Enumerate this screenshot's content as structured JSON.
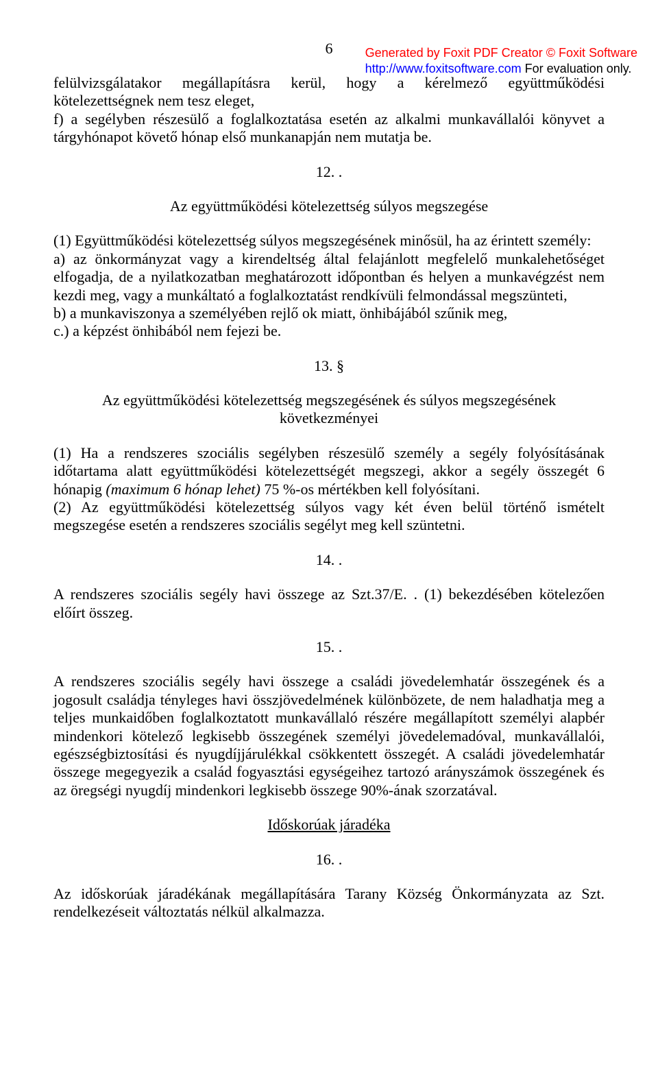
{
  "watermark": {
    "line1": "Generated by Foxit PDF Creator © Foxit Software",
    "line2_link": "http://www.foxitsoftware.com",
    "line2_suffix": "   For evaluation only."
  },
  "page_number": "6",
  "p1": "felülvizsgálatakor megállapításra kerül, hogy a kérelmező együttműködési kötelezettségnek nem tesz eleget,",
  "p2": "f) a segélyben részesülő a foglalkoztatása esetén az alkalmi munkavállalói könyvet a tárgyhónapot követő hónap első munkanapján nem mutatja be.",
  "s12_num": "12. .",
  "s12_title": "Az együttműködési kötelezettség súlyos megszegése",
  "s12_p1": "(1) Együttműködési kötelezettség súlyos megszegésének minősül, ha az érintett személy:",
  "s12_a": "a) az önkormányzat vagy a kirendeltség által felajánlott megfelelő munkalehetőséget elfogadja, de a nyilatkozatban meghatározott időpontban és helyen a munkavégzést nem kezdi meg, vagy a munkáltató a foglalkoztatást rendkívüli felmondással megszünteti,",
  "s12_b": "b) a munkaviszonya a személyében rejlő ok miatt, önhibájából szűnik meg,",
  "s12_c": "c.) a képzést önhibából nem fejezi be.",
  "s13_num": "13. §",
  "s13_title_l1": "Az együttműködési kötelezettség megszegésének és súlyos megszegésének",
  "s13_title_l2": "következményei",
  "s13_p1_a": "(1) Ha a rendszeres szociális segélyben részesülő személy a segély folyósításának időtartama alatt együttműködési kötelezettségét megszegi, akkor a segély összegét 6 hónapig ",
  "s13_p1_b_italic": "(maximum 6 hónap lehet) ",
  "s13_p1_c": "75 %-os mértékben kell folyósítani.",
  "s13_p2": "(2) Az együttműködési kötelezettség súlyos vagy két éven belül történő ismételt megszegése esetén a rendszeres szociális segélyt meg kell szüntetni.",
  "s14_num": "14. .",
  "s14_p": "A rendszeres szociális segély havi összege az Szt.37/E. . (1) bekezdésében kötelezően előírt összeg.",
  "s15_num": "15. .",
  "s15_p": "A rendszeres szociális segély havi összege a családi jövedelemhatár összegének és a jogosult családja tényleges havi összjövedelmének különbözete, de nem haladhatja meg a teljes munkaidőben foglalkoztatott munkavállaló részére megállapított személyi alapbér mindenkori kötelező legkisebb összegének személyi jövedelemadóval, munkavállalói, egészségbiztosítási és nyugdíjjárulékkal csökkentett összegét. A családi jövedelemhatár összege megegyezik a család fogyasztási egységeihez tartozó arányszámok összegének és az öregségi nyugdíj mindenkori legkisebb összege 90%-ának szorzatával.",
  "idoskoruak_title": "Időskorúak járadéka",
  "s16_num": "16. .",
  "s16_p": "Az időskorúak járadékának megállapítására Tarany Község Önkormányzata az Szt. rendelkezéseit változtatás nélkül alkalmazza."
}
